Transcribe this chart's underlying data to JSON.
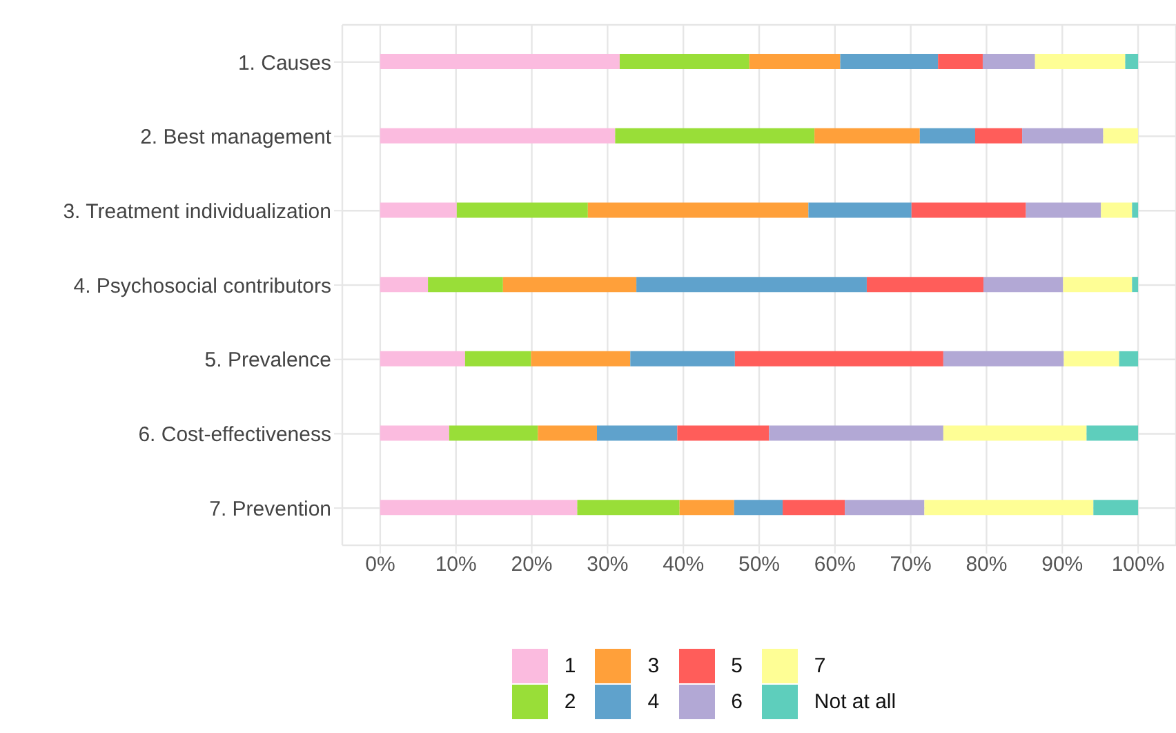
{
  "chart_data": {
    "type": "bar",
    "orientation": "horizontal",
    "stacked": true,
    "categories": [
      "1. Causes",
      "2. Best management",
      "3. Treatment individualization",
      "4. Psychosocial contributors",
      "5. Prevalence",
      "6. Cost-effectiveness",
      "7. Prevention"
    ],
    "series": [
      {
        "name": "1",
        "color": "#fbbbdf",
        "values": [
          31.6,
          31.0,
          10.1,
          6.3,
          11.2,
          9.1,
          26.0
        ]
      },
      {
        "name": "2",
        "color": "#99de38",
        "values": [
          17.1,
          26.3,
          17.3,
          9.9,
          8.7,
          11.7,
          13.5
        ]
      },
      {
        "name": "3",
        "color": "#ffa03a",
        "values": [
          12.0,
          13.9,
          29.1,
          17.6,
          13.1,
          7.8,
          7.2
        ]
      },
      {
        "name": "4",
        "color": "#5fa2cc",
        "values": [
          12.9,
          7.3,
          13.6,
          30.4,
          13.8,
          10.6,
          6.4
        ]
      },
      {
        "name": "5",
        "color": "#ff5d5a",
        "values": [
          5.9,
          6.2,
          15.1,
          15.4,
          27.5,
          12.1,
          8.2
        ]
      },
      {
        "name": "6",
        "color": "#b2a8d5",
        "values": [
          6.9,
          10.7,
          9.9,
          10.5,
          15.9,
          23.0,
          10.5
        ]
      },
      {
        "name": "7",
        "color": "#fefe95",
        "values": [
          11.9,
          4.6,
          4.1,
          9.1,
          7.3,
          18.9,
          22.3
        ]
      },
      {
        "name": "Not at all",
        "color": "#5ecebc",
        "values": [
          1.7,
          0,
          0.8,
          0.8,
          2.5,
          6.8,
          5.9
        ]
      }
    ],
    "xlim": [
      -5,
      105
    ],
    "xticks": [
      {
        "value": 0,
        "label": "0%"
      },
      {
        "value": 10,
        "label": "10%"
      },
      {
        "value": 20,
        "label": "20%"
      },
      {
        "value": 30,
        "label": "30%"
      },
      {
        "value": 40,
        "label": "40%"
      },
      {
        "value": 50,
        "label": "50%"
      },
      {
        "value": 60,
        "label": "60%"
      },
      {
        "value": 70,
        "label": "70%"
      },
      {
        "value": 80,
        "label": "80%"
      },
      {
        "value": 90,
        "label": "90%"
      },
      {
        "value": 100,
        "label": "100%"
      }
    ],
    "grid": true,
    "legend": "bottom"
  }
}
